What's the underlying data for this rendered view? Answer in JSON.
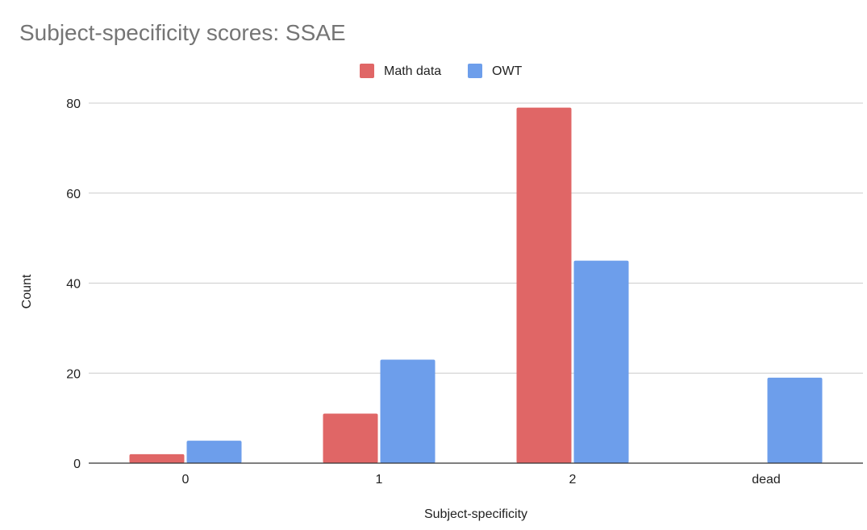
{
  "chart_data": {
    "type": "bar",
    "title": "Subject-specificity scores: SSAE",
    "xlabel": "Subject-specificity",
    "ylabel": "Count",
    "categories": [
      "0",
      "1",
      "2",
      "dead"
    ],
    "series": [
      {
        "name": "Math data",
        "values": [
          2,
          11,
          79,
          0
        ],
        "color": "#e06666"
      },
      {
        "name": "OWT",
        "values": [
          5,
          23,
          45,
          19
        ],
        "color": "#6d9eeb"
      }
    ],
    "ylim": [
      0,
      80
    ],
    "yticks": [
      0,
      20,
      40,
      60,
      80
    ],
    "grid": true,
    "legend_position": "top"
  }
}
